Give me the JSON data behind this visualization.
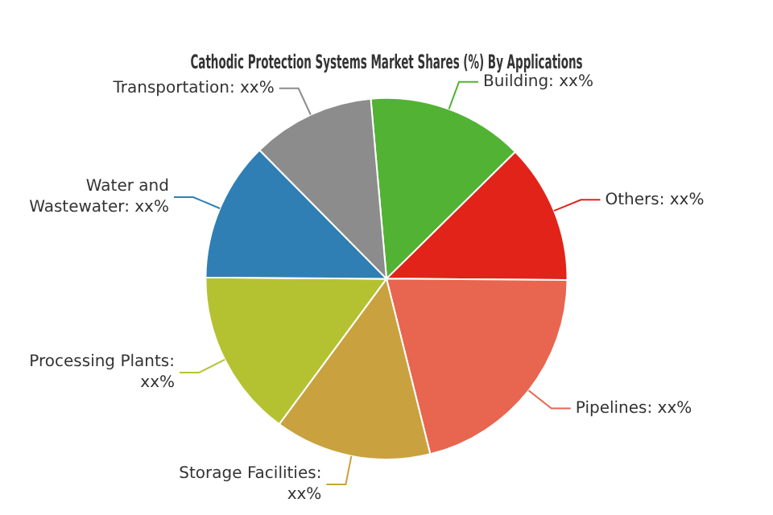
{
  "chart_data": {
    "type": "pie",
    "title": "Cathodic Protection Systems Market Shares (%) By Applications",
    "categories": [
      "Building: xx%",
      "Others: xx%",
      "Pipelines: xx%",
      "Storage Facilities: xx%",
      "Processing Plants: xx%",
      "Water and Wastewater: xx%",
      "Transportation: xx%"
    ],
    "values": [
      14,
      12.5,
      21,
      14,
      15,
      12.5,
      11
    ],
    "colors": [
      "#52b234",
      "#e2231a",
      "#e8654f",
      "#c9a23f",
      "#b4c232",
      "#2f7fb4",
      "#8c8c8c"
    ],
    "legend": false
  }
}
